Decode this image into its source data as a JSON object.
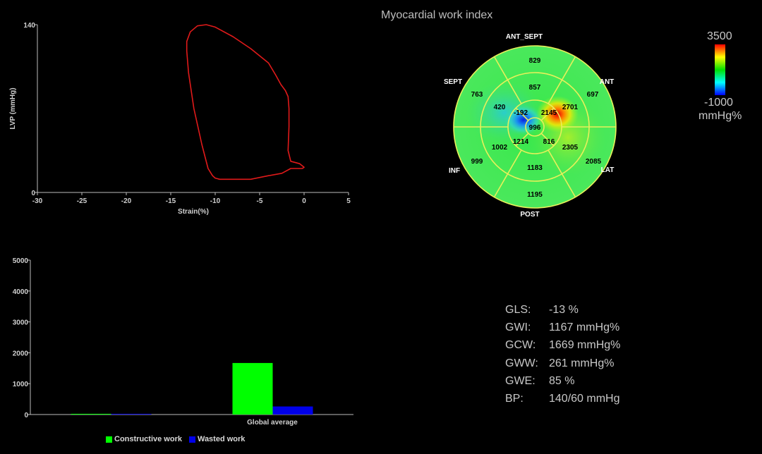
{
  "title": "Myocardial work index",
  "loop_chart": {
    "ylabel": "LVP (mmHg)",
    "xlabel": "Strain(%)",
    "y_ticks": [
      "140",
      "0"
    ],
    "x_ticks": [
      "-30",
      "-25",
      "-20",
      "-15",
      "-10",
      "-5",
      "0",
      "5"
    ]
  },
  "bullseye": {
    "segment_labels": {
      "ant_sept": "ANT_SEPT",
      "ant": "ANT",
      "lat": "LAT",
      "post": "POST",
      "inf": "INF",
      "sept": "SEPT"
    },
    "values": {
      "basal_ant_sept": "829",
      "basal_ant": "697",
      "basal_lat": "2085",
      "basal_post": "1195",
      "basal_inf": "999",
      "basal_sept": "763",
      "mid_ant_sept": "857",
      "mid_ant": "2701",
      "mid_lat": "2305",
      "mid_post": "1183",
      "mid_inf": "1002",
      "mid_sept": "420",
      "apical_ant": "2145",
      "apical_lat": "816",
      "apical_inf": "1214",
      "apical_sept": "-192",
      "apex": "996"
    }
  },
  "colorbar": {
    "max_label": "3500",
    "min_label": "-1000",
    "unit": "mmHg%",
    "colors": [
      "#ff0000",
      "#ffff00",
      "#00e000",
      "#00ffff",
      "#0000ff"
    ]
  },
  "metrics": [
    {
      "label": "GLS:",
      "value": "-13 %"
    },
    {
      "label": "GWI:",
      "value": "1167 mmHg%"
    },
    {
      "label": "GCW:",
      "value": "1669 mmHg%"
    },
    {
      "label": "GWW:",
      "value": "261 mmHg%"
    },
    {
      "label": "GWE:",
      "value": "85 %"
    },
    {
      "label": "BP:",
      "value": "140/60 mmHg"
    }
  ],
  "chart_data": [
    {
      "type": "line",
      "xlabel": "Strain(%)",
      "ylabel": "LVP (mmHg)",
      "xlim": [
        -30,
        5
      ],
      "ylim": [
        0,
        140
      ],
      "series": [
        {
          "x": [
            -12.8,
            -12.0,
            -11.0,
            -10.0,
            -8.0,
            -6.0,
            -4.0,
            -3.2,
            -2.6,
            -2.1,
            -1.8,
            -1.7,
            -1.7,
            -1.8,
            -1.5,
            -0.5,
            0.0,
            -0.2,
            -1.5,
            -2.5,
            -4.0,
            -6.0,
            -8.0,
            -9.5,
            -10.0,
            -10.3,
            -10.8,
            -11.5,
            -12.4,
            -13.0,
            -13.2,
            -13.2,
            -12.8
          ],
          "y": [
            134,
            139,
            140,
            138,
            130,
            120,
            108,
            98,
            90,
            85,
            80,
            70,
            55,
            35,
            26,
            24,
            21,
            20,
            20,
            16,
            14,
            11,
            11,
            11,
            12,
            14,
            20,
            40,
            70,
            100,
            118,
            126,
            134
          ],
          "color": "#e01a1a"
        }
      ]
    },
    {
      "type": "bar",
      "categories": [
        "",
        "Global average"
      ],
      "ylim": [
        0,
        5000
      ],
      "y_ticks": [
        0,
        1000,
        2000,
        3000,
        4000,
        5000
      ],
      "series": [
        {
          "name": "Constructive work",
          "values": [
            0,
            1669
          ],
          "color": "#00ff00"
        },
        {
          "name": "Wasted work",
          "values": [
            0,
            261
          ],
          "color": "#0000e8"
        }
      ]
    }
  ]
}
